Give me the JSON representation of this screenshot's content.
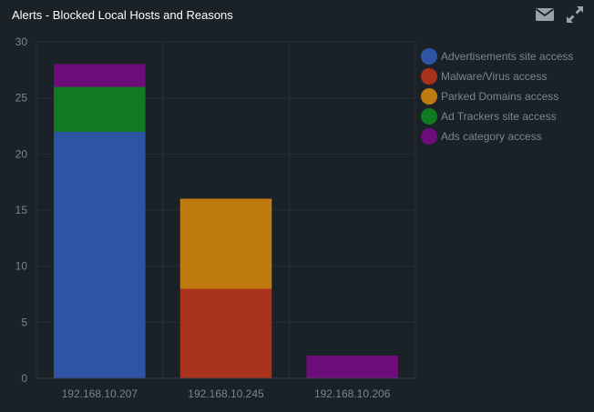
{
  "panel": {
    "title": "Alerts - Blocked Local Hosts and Reasons",
    "icons": {
      "email": "envelope-icon",
      "expand": "expand-arrows-icon"
    }
  },
  "chart_data": {
    "type": "bar",
    "stacked": true,
    "title": "",
    "xlabel": "",
    "ylabel": "",
    "ylim": [
      0,
      30
    ],
    "yticks": [
      0,
      5,
      10,
      15,
      20,
      25,
      30
    ],
    "grid": true,
    "legend_position": "top-right",
    "categories": [
      "192.168.10.207",
      "192.168.10.245",
      "192.168.10.206"
    ],
    "series": [
      {
        "name": "Advertisements site access",
        "color": "#2e55a3",
        "values": [
          22,
          0,
          0
        ]
      },
      {
        "name": "Malware/Virus access",
        "color": "#a8321c",
        "values": [
          0,
          8,
          0
        ]
      },
      {
        "name": "Parked Domains access",
        "color": "#bf7a10",
        "values": [
          0,
          8,
          0
        ]
      },
      {
        "name": "Ad Trackers site access",
        "color": "#127a22",
        "values": [
          4,
          0,
          0
        ]
      },
      {
        "name": "Ads category access",
        "color": "#6f0c7c",
        "values": [
          2,
          0,
          2
        ]
      }
    ]
  }
}
